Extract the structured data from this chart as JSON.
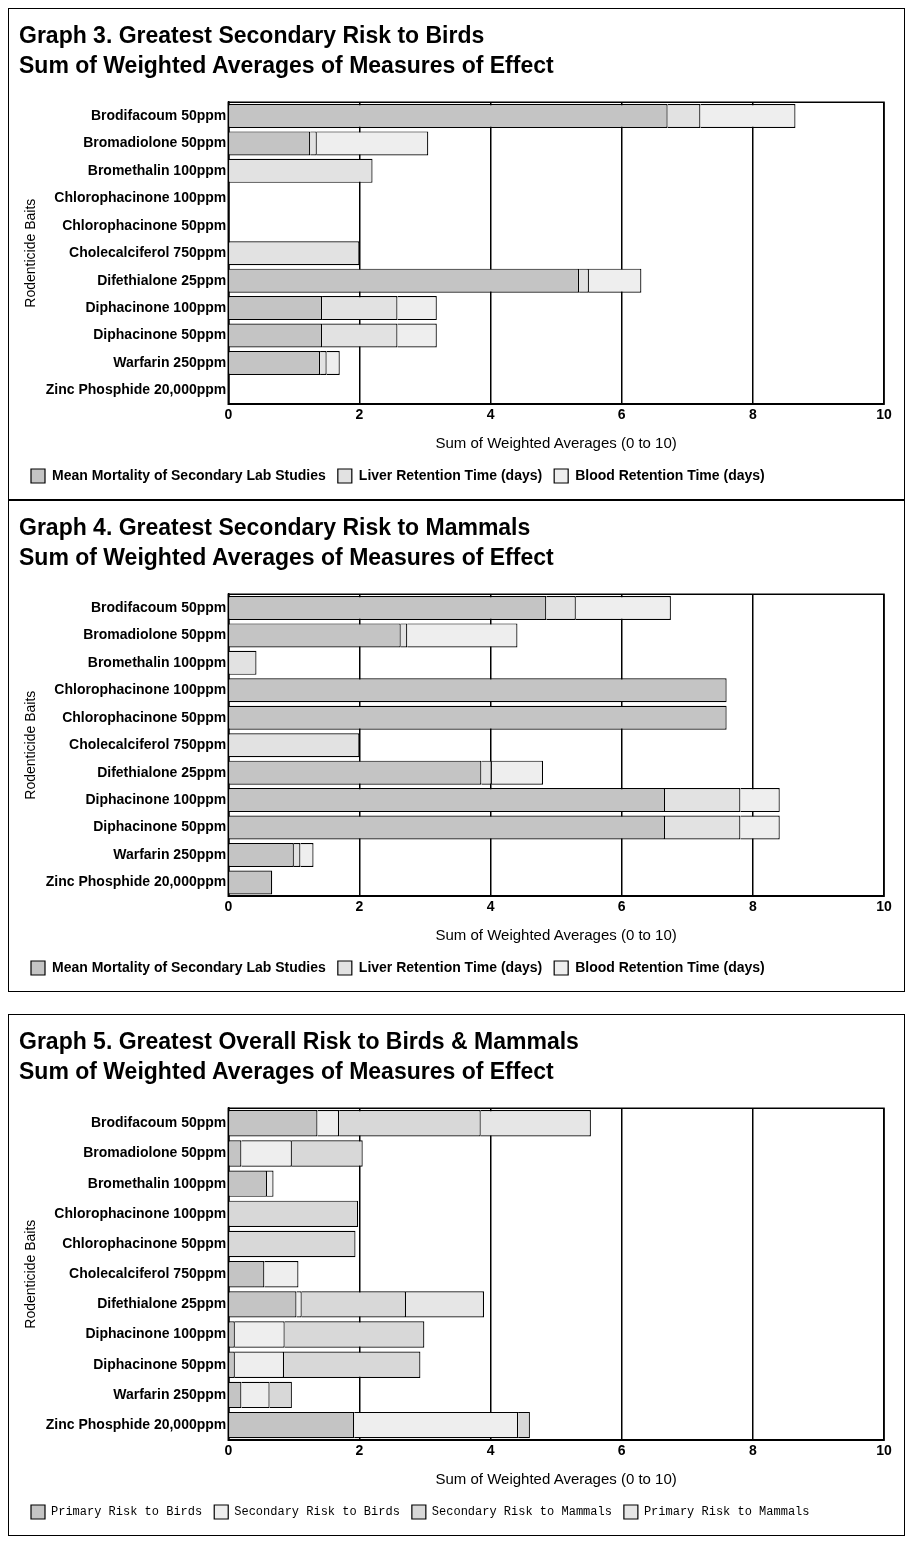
{
  "chart_data": [
    {
      "type": "bar",
      "orientation": "horizontal",
      "stacked": true,
      "title": "Graph 3. Greatest Secondary Risk to Birds",
      "subtitle": "Sum of Weighted Averages of Measures of Effect",
      "xlabel": "Sum of Weighted Averages (0 to 10)",
      "ylabel": "Rodenticide Baits",
      "categories": [
        "Brodifacoum 50ppm",
        "Bromadiolone 50ppm",
        "Bromethalin 100ppm",
        "Chlorophacinone 100ppm",
        "Chlorophacinone 50ppm",
        "Cholecalciferol 750ppm",
        "Difethialone 25ppm",
        "Diphacinone 100ppm",
        "Diphacinone 50ppm",
        "Warfarin 250ppm",
        "Zinc Phosphide 20,000ppm"
      ],
      "series": [
        {
          "name": "Mean Mortality of Secondary Lab Studies",
          "color": "#c4c4c4",
          "values": [
            6.7,
            1.25,
            null,
            null,
            null,
            null,
            5.35,
            1.43,
            1.43,
            1.4,
            null
          ]
        },
        {
          "name": "Liver Retention Time (days)",
          "color": "#e2e2e2",
          "values": [
            0.5,
            0.1,
            2.2,
            null,
            null,
            2.0,
            0.15,
            1.15,
            1.15,
            0.1,
            null
          ]
        },
        {
          "name": "Blood Retention Time (days)",
          "color": "#eeeeee",
          "values": [
            1.45,
            1.7,
            null,
            null,
            null,
            null,
            0.8,
            0.6,
            0.6,
            0.2,
            null
          ]
        }
      ],
      "xlim": [
        0,
        10
      ],
      "xticks": [
        0,
        2,
        4,
        6,
        8,
        10
      ],
      "grid": "x",
      "legend": "bottom"
    },
    {
      "type": "bar",
      "orientation": "horizontal",
      "stacked": true,
      "title": "Graph 4. Greatest Secondary Risk to Mammals",
      "subtitle": "Sum of Weighted Averages of Measures of Effect",
      "xlabel": "Sum of Weighted Averages (0 to 10)",
      "ylabel": "Rodenticide Baits",
      "categories": [
        "Brodifacoum 50ppm",
        "Bromadiolone 50ppm",
        "Bromethalin 100ppm",
        "Chlorophacinone 100ppm",
        "Chlorophacinone 50ppm",
        "Cholecalciferol 750ppm",
        "Difethialone 25ppm",
        "Diphacinone 100ppm",
        "Diphacinone 50ppm",
        "Warfarin 250ppm",
        "Zinc Phosphide 20,000ppm"
      ],
      "series": [
        {
          "name": "Mean Mortality of Secondary Lab Studies",
          "color": "#c4c4c4",
          "values": [
            4.85,
            2.63,
            null,
            7.6,
            7.6,
            null,
            3.86,
            6.66,
            6.66,
            1.0,
            0.67
          ]
        },
        {
          "name": "Liver Retention Time (days)",
          "color": "#e2e2e2",
          "values": [
            0.45,
            0.1,
            0.43,
            null,
            null,
            2.0,
            0.16,
            1.15,
            1.15,
            0.1,
            null
          ]
        },
        {
          "name": "Blood Retention Time (days)",
          "color": "#eeeeee",
          "values": [
            1.45,
            1.68,
            null,
            null,
            null,
            null,
            0.78,
            0.6,
            0.6,
            0.2,
            null
          ]
        }
      ],
      "xlim": [
        0,
        10
      ],
      "xticks": [
        0,
        2,
        4,
        6,
        8,
        10
      ],
      "grid": "x",
      "legend": "bottom"
    },
    {
      "type": "bar",
      "orientation": "horizontal",
      "stacked": true,
      "title": "Graph 5. Greatest Overall Risk to Birds & Mammals",
      "subtitle": "Sum of Weighted Averages of Measures of Effect",
      "xlabel": "Sum of Weighted Averages (0 to 10)",
      "ylabel": "Rodenticide Baits",
      "categories": [
        "Brodifacoum 50ppm",
        "Bromadiolone 50ppm",
        "Bromethalin 100ppm",
        "Chlorophacinone 100ppm",
        "Chlorophacinone 50ppm",
        "Cholecalciferol 750ppm",
        "Difethialone 25ppm",
        "Diphacinone 100ppm",
        "Diphacinone 50ppm",
        "Warfarin 250ppm",
        "Zinc Phosphide 20,000ppm"
      ],
      "series": [
        {
          "name": "Primary Risk to Birds",
          "color": "#c4c4c4",
          "values": [
            1.36,
            0.2,
            0.59,
            null,
            null,
            0.55,
            1.04,
            0.1,
            0.1,
            0.2,
            1.92
          ]
        },
        {
          "name": "Secondary Risk to Birds",
          "color": "#eeeeee",
          "values": [
            0.33,
            0.77,
            0.1,
            null,
            null,
            0.52,
            0.08,
            0.76,
            0.75,
            0.43,
            2.5
          ]
        },
        {
          "name": "Secondary Risk to Mammals",
          "color": "#d8d8d8",
          "values": [
            2.16,
            1.08,
            null,
            1.98,
            1.94,
            null,
            1.59,
            2.13,
            2.08,
            0.34,
            0.18
          ]
        },
        {
          "name": "Primary Risk to Mammals",
          "color": "#e6e6e6",
          "values": [
            1.68,
            null,
            null,
            null,
            null,
            null,
            1.19,
            null,
            null,
            null,
            null
          ]
        }
      ],
      "xlim": [
        0,
        10
      ],
      "xticks": [
        0,
        2,
        4,
        6,
        8,
        10
      ],
      "grid": "x",
      "legend": "bottom"
    }
  ]
}
